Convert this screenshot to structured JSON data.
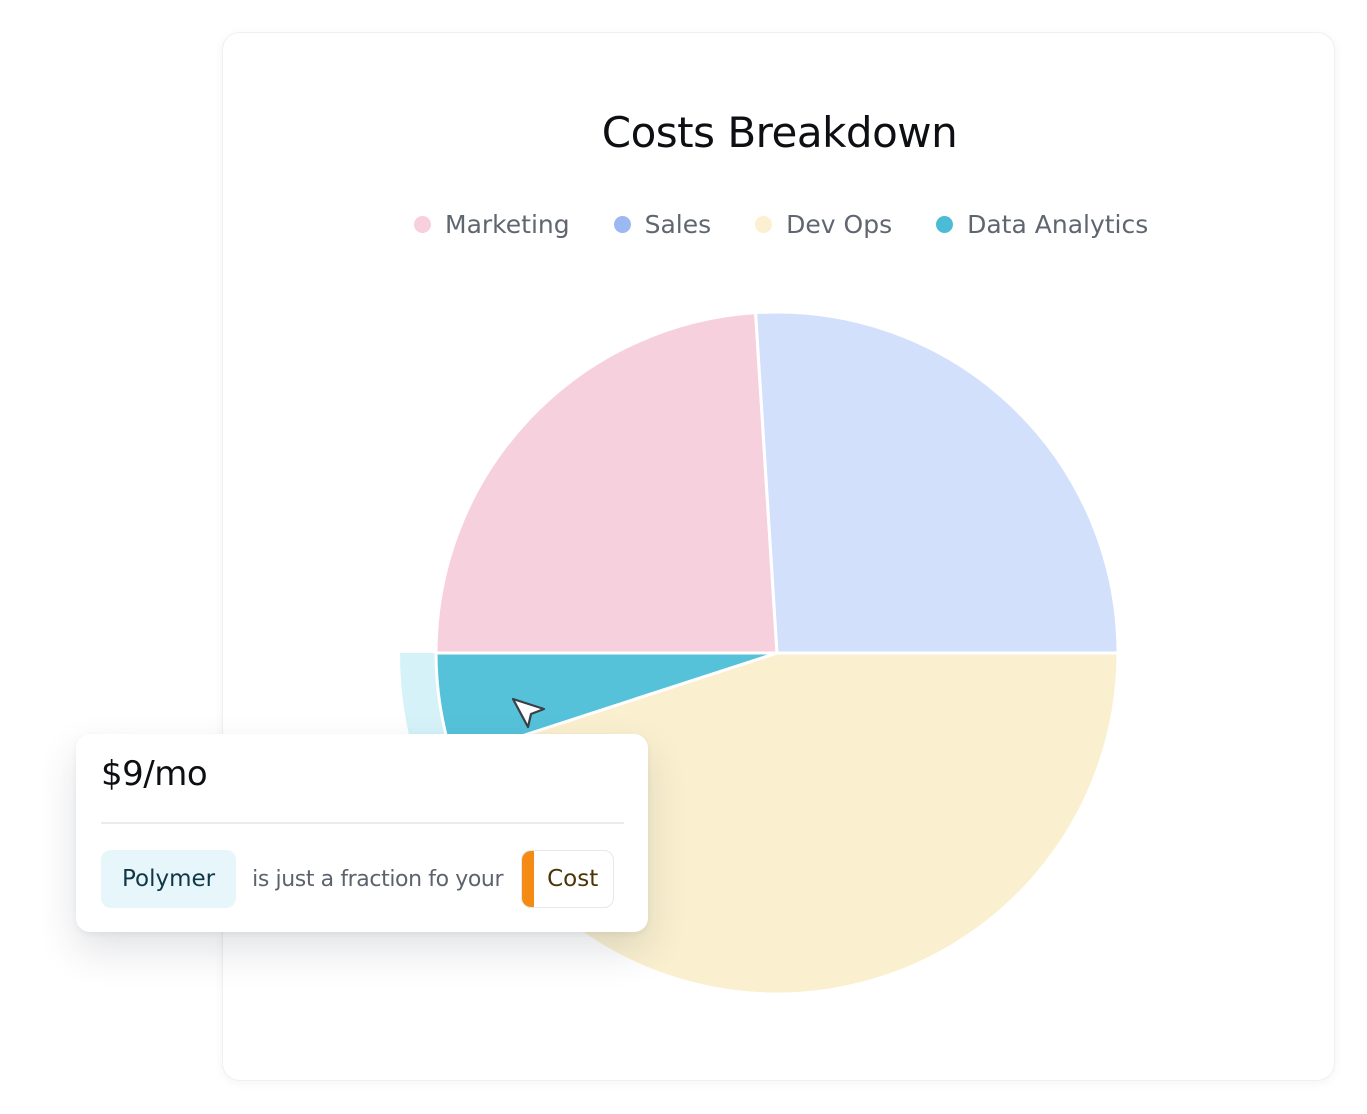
{
  "chart_data": {
    "type": "pie",
    "title": "Costs Breakdown",
    "legend_position": "top",
    "series": [
      {
        "name": "Marketing",
        "value": 24,
        "color": "#f7d0de"
      },
      {
        "name": "Sales",
        "value": 26,
        "color": "#d2e0fc"
      },
      {
        "name": "Dev Ops",
        "value": 45,
        "color": "#faf0cf"
      },
      {
        "name": "Data Analytics",
        "value": 5,
        "color": "#55c2da"
      }
    ],
    "legend_dot_colors": [
      "#f7cfdd",
      "#9bb8f3",
      "#fbf0cf",
      "#4bbcd6"
    ],
    "highlighted_series": "Data Analytics",
    "highlight_ring_color": "#d5f2f9"
  },
  "popup": {
    "price": "$9/mo",
    "brand": "Polymer",
    "text": "is just a fraction fo your",
    "cost_label": "Cost",
    "accent_color": "#f38b14"
  },
  "icons": {
    "cursor": "cursor-arrow-icon"
  }
}
